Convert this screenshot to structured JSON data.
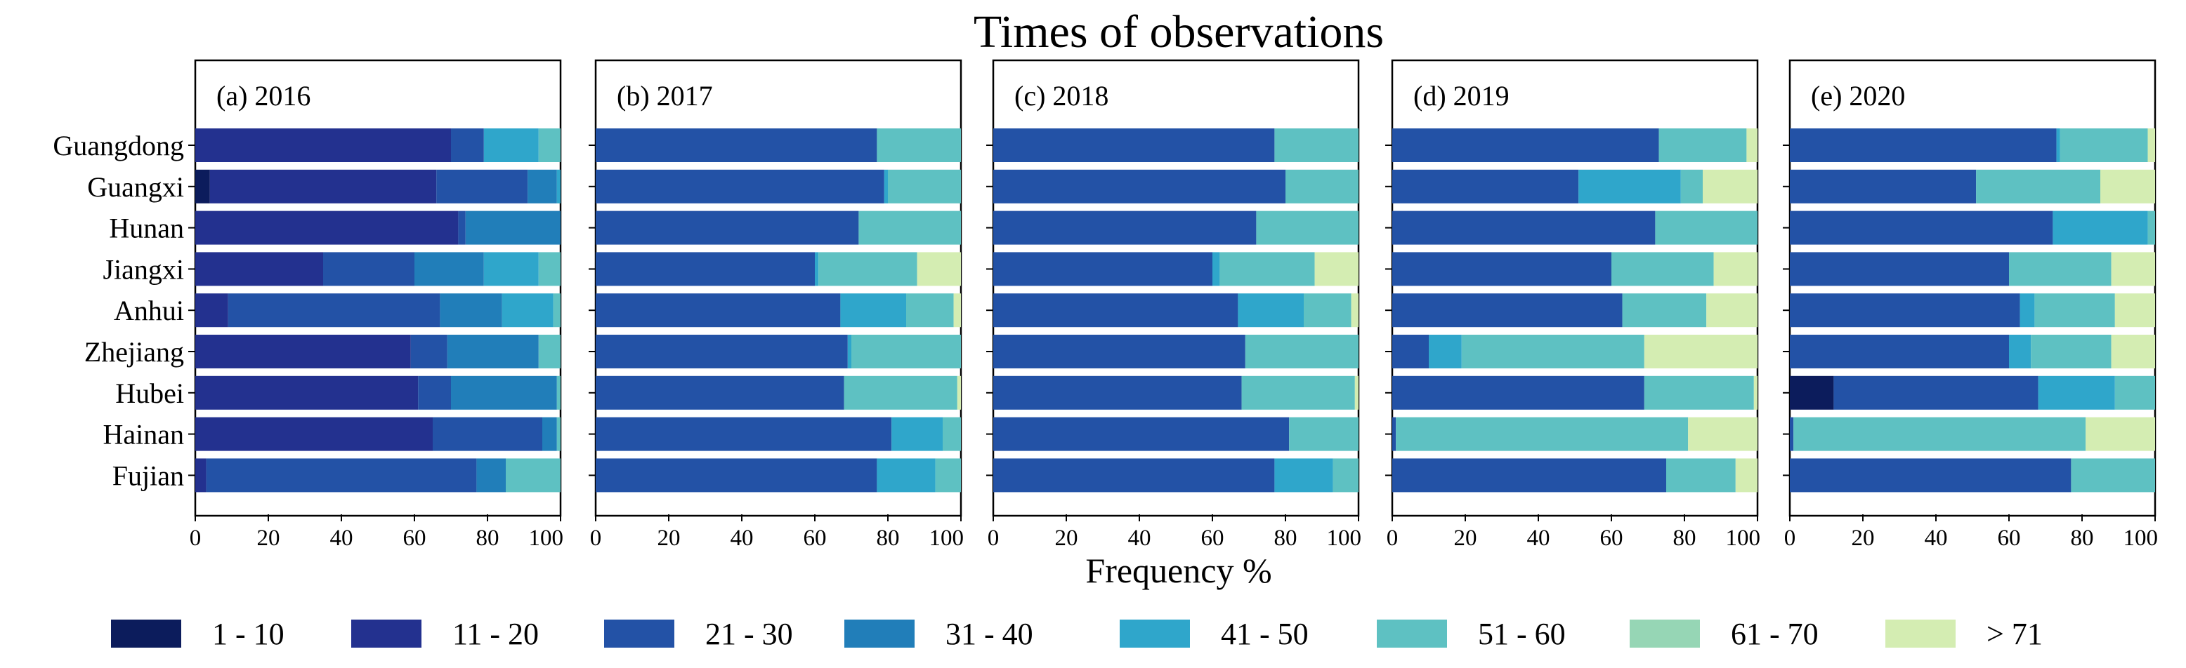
{
  "chart_data": {
    "type": "bar",
    "stacked": true,
    "orientation": "horizontal",
    "title": "Times of observations",
    "xlabel": "Frequency %",
    "xlim": [
      0,
      100
    ],
    "xticks": [
      "0",
      "20",
      "40",
      "60",
      "80",
      "100"
    ],
    "categories": [
      "Guangdong",
      "Guangxi",
      "Hunan",
      "Jiangxi",
      "Anhui",
      "Zhejiang",
      "Hubei",
      "Hainan",
      "Fujian"
    ],
    "legend": [
      {
        "label": "1 - 10",
        "color": "#0c1c5c"
      },
      {
        "label": "11 - 20",
        "color": "#23318f"
      },
      {
        "label": "21 - 30",
        "color": "#2352a6"
      },
      {
        "label": "31 - 40",
        "color": "#217eb9"
      },
      {
        "label": "41 - 50",
        "color": "#2fa6cb"
      },
      {
        "label": "51 - 60",
        "color": "#5ec1c2"
      },
      {
        "label": "61 - 70",
        "color": "#96d6b5"
      },
      {
        "label": "> 71",
        "color": "#d4edb2"
      }
    ],
    "panels": [
      {
        "label": "(a) 2016",
        "values": [
          [
            0,
            70,
            9,
            0,
            15,
            6,
            0,
            0
          ],
          [
            4,
            62,
            25,
            8,
            1,
            0,
            0,
            0
          ],
          [
            0,
            72,
            2,
            26,
            0,
            0,
            0,
            0
          ],
          [
            0,
            35,
            25,
            19,
            15,
            6,
            0,
            0
          ],
          [
            0,
            9,
            58,
            17,
            14,
            2,
            0,
            0
          ],
          [
            0,
            59,
            10,
            25,
            0,
            6,
            0,
            0
          ],
          [
            0,
            61,
            9,
            29,
            0,
            1,
            0,
            0
          ],
          [
            0,
            65,
            30,
            4,
            0,
            1,
            0,
            0
          ],
          [
            0,
            3,
            74,
            8,
            0,
            15,
            0,
            0
          ]
        ]
      },
      {
        "label": "(b) 2017",
        "values": [
          [
            0,
            0,
            77,
            0,
            0,
            23,
            0,
            0
          ],
          [
            0,
            0,
            79,
            0,
            1,
            20,
            0,
            0
          ],
          [
            0,
            0,
            72,
            0,
            0,
            28,
            0,
            0
          ],
          [
            0,
            0,
            60,
            0,
            1,
            27,
            0,
            12
          ],
          [
            0,
            0,
            67,
            0,
            18,
            13,
            0,
            2
          ],
          [
            0,
            0,
            69,
            0,
            1,
            30,
            0,
            0
          ],
          [
            0,
            0,
            68,
            0,
            0,
            31,
            0,
            1
          ],
          [
            0,
            0,
            81,
            0,
            14,
            5,
            0,
            0
          ],
          [
            0,
            0,
            77,
            0,
            16,
            7,
            0,
            0
          ]
        ]
      },
      {
        "label": "(c) 2018",
        "values": [
          [
            0,
            0,
            77,
            0,
            0,
            23,
            0,
            0
          ],
          [
            0,
            0,
            80,
            0,
            0,
            20,
            0,
            0
          ],
          [
            0,
            0,
            72,
            0,
            0,
            28,
            0,
            0
          ],
          [
            0,
            0,
            60,
            0,
            2,
            26,
            0,
            12
          ],
          [
            0,
            0,
            67,
            0,
            18,
            13,
            0,
            2
          ],
          [
            0,
            0,
            69,
            0,
            0,
            31,
            0,
            0
          ],
          [
            0,
            0,
            68,
            0,
            0,
            31,
            0,
            1
          ],
          [
            0,
            0,
            81,
            0,
            0,
            19,
            0,
            0
          ],
          [
            0,
            0,
            77,
            0,
            16,
            7,
            0,
            0
          ]
        ]
      },
      {
        "label": "(d) 2019",
        "values": [
          [
            0,
            0,
            73,
            0,
            0,
            24,
            0,
            3
          ],
          [
            0,
            0,
            51,
            0,
            28,
            6,
            0,
            15
          ],
          [
            0,
            0,
            72,
            0,
            0,
            28,
            0,
            0
          ],
          [
            0,
            0,
            60,
            0,
            0,
            28,
            0,
            12
          ],
          [
            0,
            0,
            63,
            0,
            0,
            23,
            0,
            14
          ],
          [
            0,
            0,
            10,
            0,
            9,
            50,
            0,
            31
          ],
          [
            0,
            0,
            69,
            0,
            0,
            30,
            0,
            1
          ],
          [
            0,
            0,
            1,
            0,
            0,
            80,
            0,
            19
          ],
          [
            0,
            0,
            75,
            0,
            0,
            19,
            0,
            6
          ]
        ]
      },
      {
        "label": "(e) 2020",
        "values": [
          [
            0,
            0,
            73,
            0,
            1,
            24,
            0,
            2
          ],
          [
            0,
            0,
            51,
            0,
            0,
            34,
            0,
            15
          ],
          [
            0,
            0,
            72,
            0,
            26,
            2,
            0,
            0
          ],
          [
            0,
            0,
            60,
            0,
            0,
            28,
            0,
            12
          ],
          [
            0,
            0,
            63,
            0,
            4,
            22,
            0,
            11
          ],
          [
            0,
            0,
            60,
            0,
            6,
            22,
            0,
            12
          ],
          [
            12,
            0,
            56,
            0,
            21,
            11,
            0,
            0
          ],
          [
            0,
            0,
            1,
            0,
            0,
            80,
            0,
            19
          ],
          [
            0,
            0,
            77,
            0,
            0,
            23,
            0,
            0
          ]
        ]
      }
    ]
  }
}
